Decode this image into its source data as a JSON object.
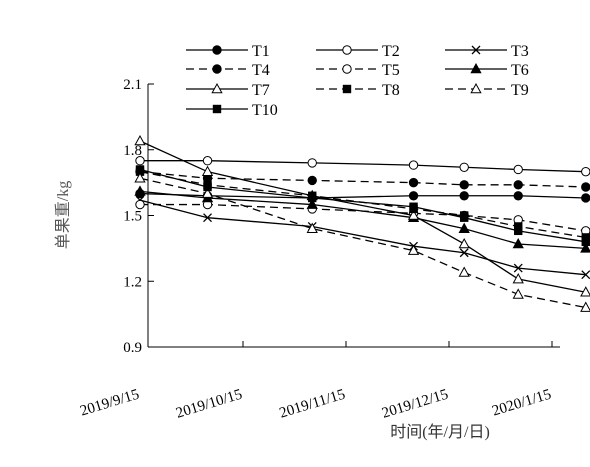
{
  "chart_data": {
    "type": "line",
    "xlabel": "时间(年/月/日)",
    "ylabel": "单果重/kg",
    "ylim": [
      0.9,
      2.1
    ],
    "yticks": [
      "0.9",
      "1.2",
      "1.5",
      "1.8",
      "2.1"
    ],
    "x_tick_labels": [
      "2019/9/15",
      "2019/10/15",
      "2019/11/15",
      "2019/12/15",
      "2020/1/15"
    ],
    "x_sample_dates": [
      "2019/9/15",
      "2019/10/5",
      "2019/11/5",
      "2019/12/5",
      "2019/12/20",
      "2020/1/5",
      "2020/1/25"
    ],
    "grid": false,
    "legend_position": "top",
    "series": [
      {
        "name": "T1",
        "marker": "filled-circle",
        "dash": false,
        "values": [
          1.6,
          1.59,
          1.58,
          1.59,
          1.59,
          1.59,
          1.58
        ]
      },
      {
        "name": "T2",
        "marker": "open-circle",
        "dash": false,
        "values": [
          1.75,
          1.75,
          1.74,
          1.73,
          1.72,
          1.71,
          1.7
        ]
      },
      {
        "name": "T3",
        "marker": "cross",
        "dash": false,
        "values": [
          1.57,
          1.49,
          1.45,
          1.36,
          1.33,
          1.26,
          1.23
        ]
      },
      {
        "name": "T4",
        "marker": "filled-circle",
        "dash": true,
        "values": [
          1.7,
          1.67,
          1.66,
          1.65,
          1.64,
          1.64,
          1.63
        ]
      },
      {
        "name": "T5",
        "marker": "open-circle",
        "dash": true,
        "values": [
          1.55,
          1.55,
          1.53,
          1.51,
          1.5,
          1.48,
          1.43
        ]
      },
      {
        "name": "T6",
        "marker": "filled-triangle",
        "dash": false,
        "values": [
          1.61,
          1.58,
          1.55,
          1.49,
          1.44,
          1.37,
          1.35
        ]
      },
      {
        "name": "T7",
        "marker": "open-triangle",
        "dash": false,
        "values": [
          1.84,
          1.7,
          1.59,
          1.5,
          1.37,
          1.21,
          1.15
        ]
      },
      {
        "name": "T8",
        "marker": "filled-square",
        "dash": true,
        "values": [
          1.7,
          1.64,
          1.59,
          1.53,
          1.5,
          1.45,
          1.4
        ]
      },
      {
        "name": "T9",
        "marker": "open-triangle",
        "dash": true,
        "values": [
          1.67,
          1.6,
          1.44,
          1.34,
          1.24,
          1.14,
          1.08
        ]
      },
      {
        "name": "T10",
        "marker": "filled-square",
        "dash": false,
        "values": [
          1.71,
          1.63,
          1.58,
          1.54,
          1.49,
          1.43,
          1.38
        ]
      }
    ]
  }
}
